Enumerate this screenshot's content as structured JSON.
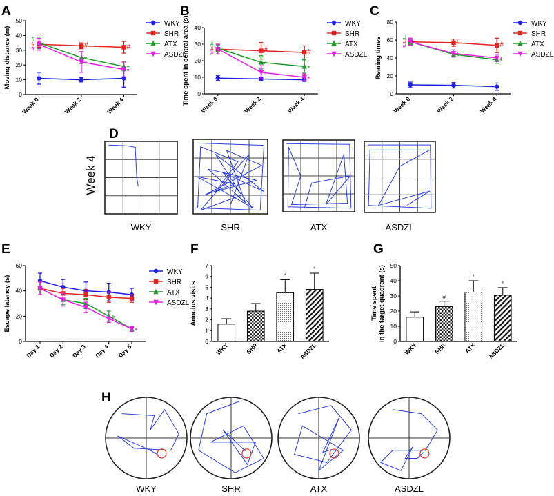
{
  "legend_labels": [
    "WKY",
    "SHR",
    "ATX",
    "ASDZL"
  ],
  "colors": {
    "WKY": "#1f1fe6",
    "SHR": "#e6231f",
    "ATX": "#1f9b2a",
    "ASDZL": "#e620e6"
  },
  "sig_hash": "#",
  "sig_star": "*",
  "chart_data": [
    {
      "panel": "A",
      "type": "line",
      "ylabel": "Moving distance (m)",
      "categories": [
        "Week 0",
        "Week 2",
        "Week 4"
      ],
      "ylim": [
        0,
        50
      ],
      "yticks": [
        "0",
        "10",
        "20",
        "30",
        "40",
        "50"
      ],
      "series": [
        {
          "name": "WKY",
          "values": [
            11,
            10,
            11
          ],
          "err": [
            4,
            1.5,
            6
          ]
        },
        {
          "name": "SHR",
          "values": [
            34,
            33,
            32
          ],
          "err": [
            2,
            2,
            4
          ]
        },
        {
          "name": "ATX",
          "values": [
            35,
            25,
            19
          ],
          "err": [
            4,
            4,
            3
          ]
        },
        {
          "name": "ASDZL",
          "values": [
            34,
            22,
            17
          ],
          "err": [
            4,
            7,
            5
          ]
        }
      ]
    },
    {
      "panel": "B",
      "type": "line",
      "ylabel": "Time spent in central area (s)",
      "categories": [
        "Week 0",
        "Week 2",
        "Week 4"
      ],
      "ylim": [
        0,
        40
      ],
      "yticks": [
        "0",
        "10",
        "20",
        "30",
        "40"
      ],
      "series": [
        {
          "name": "WKY",
          "values": [
            9.5,
            9,
            8.5
          ],
          "err": [
            1.5,
            1,
            1
          ]
        },
        {
          "name": "SHR",
          "values": [
            27,
            26,
            25
          ],
          "err": [
            3,
            5,
            4
          ]
        },
        {
          "name": "ATX",
          "values": [
            27.5,
            19,
            16.5
          ],
          "err": [
            2,
            4,
            4
          ]
        },
        {
          "name": "ASDZL",
          "values": [
            27,
            13,
            10
          ],
          "err": [
            3,
            4,
            2
          ]
        }
      ]
    },
    {
      "panel": "C",
      "type": "line",
      "ylabel": "Rearing times",
      "categories": [
        "Week 0",
        "Week 2",
        "Week 4"
      ],
      "ylim": [
        0,
        80
      ],
      "yticks": [
        "0",
        "20",
        "40",
        "60",
        "80"
      ],
      "series": [
        {
          "name": "WKY",
          "values": [
            10,
            9.5,
            8
          ],
          "err": [
            3,
            3,
            4
          ]
        },
        {
          "name": "SHR",
          "values": [
            58,
            57,
            54
          ],
          "err": [
            4,
            4,
            8
          ]
        },
        {
          "name": "ATX",
          "values": [
            58,
            44,
            38
          ],
          "err": [
            3,
            3,
            4
          ]
        },
        {
          "name": "ASDZL",
          "values": [
            58,
            45,
            40
          ],
          "err": [
            4,
            4,
            4
          ]
        }
      ]
    },
    {
      "panel": "E",
      "type": "line",
      "ylabel": "Escape latency (s)",
      "categories": [
        "Day 1",
        "Day 2",
        "Day 3",
        "Day 4",
        "Day 5"
      ],
      "ylim": [
        0,
        60
      ],
      "yticks": [
        "0",
        "20",
        "40",
        "60"
      ],
      "series": [
        {
          "name": "WKY",
          "values": [
            48,
            43,
            40,
            39,
            37
          ],
          "err": [
            6,
            6,
            7,
            7,
            5
          ]
        },
        {
          "name": "SHR",
          "values": [
            42,
            38,
            37,
            35,
            34
          ],
          "err": [
            5,
            4,
            4,
            4,
            3
          ]
        },
        {
          "name": "ATX",
          "values": [
            42,
            33,
            30,
            20,
            10
          ],
          "err": [
            5,
            4,
            4,
            4,
            2
          ]
        },
        {
          "name": "ASDZL",
          "values": [
            42,
            33,
            27,
            18,
            10
          ],
          "err": [
            5,
            5,
            4,
            3,
            2
          ]
        }
      ]
    },
    {
      "panel": "F",
      "type": "bar",
      "ylabel": "Annulus visits",
      "categories": [
        "WKY",
        "SHR",
        "ATX",
        "ASDZL"
      ],
      "values": [
        1.6,
        2.8,
        4.5,
        4.8
      ],
      "err": [
        0.5,
        0.7,
        1.2,
        1.5
      ],
      "ylim": [
        0,
        7
      ],
      "yticks": [
        "0",
        "1",
        "2",
        "3",
        "4",
        "5",
        "6",
        "7"
      ],
      "marks": [
        "",
        "",
        "*",
        "*"
      ]
    },
    {
      "panel": "G",
      "type": "bar",
      "ylabel": [
        "Time spent",
        "in the target quadrant (s)"
      ],
      "categories": [
        "WKY",
        "SHR",
        "ATX",
        "ASDZL"
      ],
      "values": [
        16,
        23,
        32.5,
        30.5
      ],
      "err": [
        3.5,
        3.5,
        7.5,
        5
      ],
      "ylim": [
        0,
        50
      ],
      "yticks": [
        "0",
        "10",
        "20",
        "30",
        "40",
        "50"
      ],
      "marks": [
        "",
        "#",
        "*",
        "*"
      ]
    }
  ],
  "panel_d": {
    "label": "D",
    "row_label": "Week 4",
    "groups": [
      "WKY",
      "SHR",
      "ATX",
      "ASDZL"
    ]
  },
  "panel_h": {
    "label": "H",
    "groups": [
      "WKY",
      "SHR",
      "ATX",
      "ASDZL"
    ]
  }
}
